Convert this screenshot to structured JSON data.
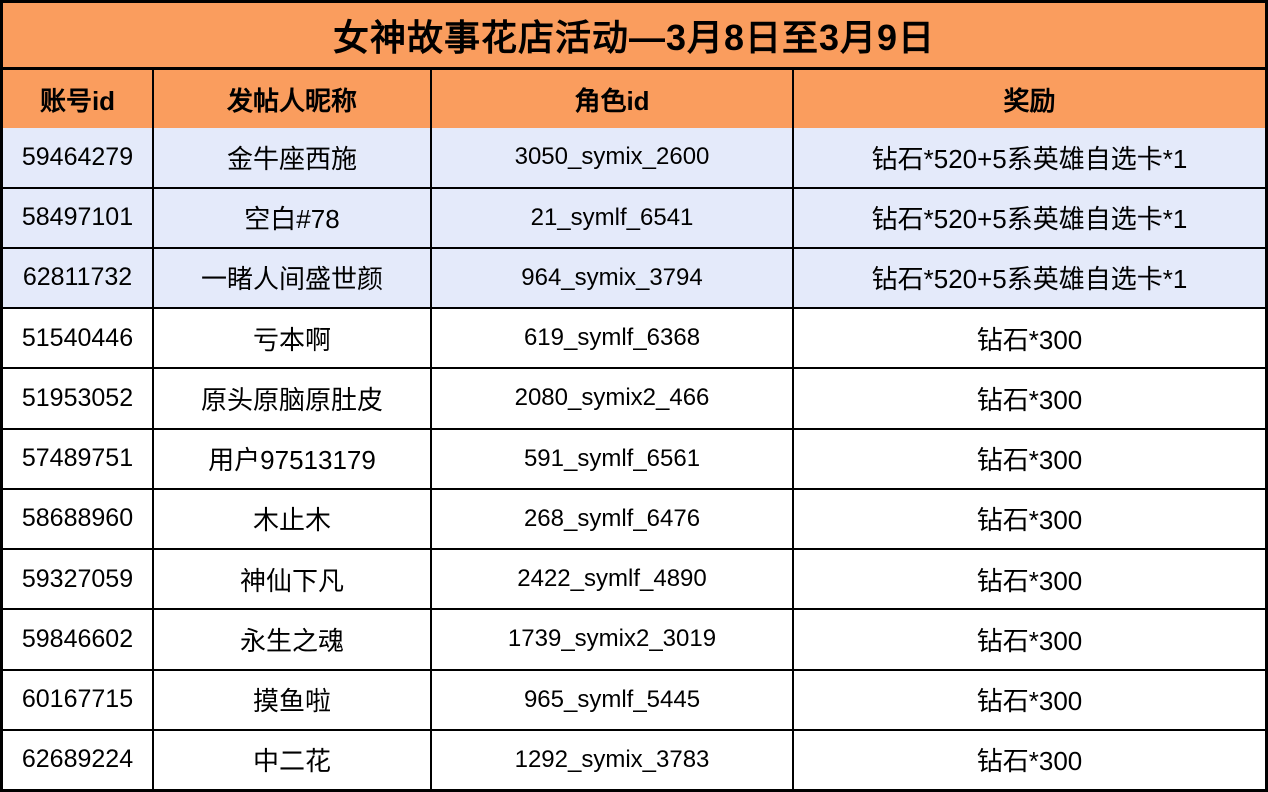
{
  "title": "女神故事花店活动—3月8日至3月9日",
  "columns": {
    "account_id": "账号id",
    "nickname": "发帖人昵称",
    "role_id": "角色id",
    "reward": "奖励"
  },
  "rows": [
    {
      "account_id": "59464279",
      "nickname": "金牛座西施",
      "role_id": "3050_symix_2600",
      "reward": "钻石*520+5系英雄自选卡*1",
      "highlight": true
    },
    {
      "account_id": "58497101",
      "nickname": "空白#78",
      "role_id": "21_symlf_6541",
      "reward": "钻石*520+5系英雄自选卡*1",
      "highlight": true
    },
    {
      "account_id": "62811732",
      "nickname": "一睹人间盛世颜",
      "role_id": "964_symix_3794",
      "reward": "钻石*520+5系英雄自选卡*1",
      "highlight": true
    },
    {
      "account_id": "51540446",
      "nickname": "亏本啊",
      "role_id": "619_symlf_6368",
      "reward": "钻石*300",
      "highlight": false
    },
    {
      "account_id": "51953052",
      "nickname": "原头原脑原肚皮",
      "role_id": "2080_symix2_466",
      "reward": "钻石*300",
      "highlight": false
    },
    {
      "account_id": "57489751",
      "nickname": "用户97513179",
      "role_id": "591_symlf_6561",
      "reward": "钻石*300",
      "highlight": false
    },
    {
      "account_id": "58688960",
      "nickname": "木止木",
      "role_id": "268_symlf_6476",
      "reward": "钻石*300",
      "highlight": false
    },
    {
      "account_id": "59327059",
      "nickname": "神仙下凡",
      "role_id": "2422_symlf_4890",
      "reward": "钻石*300",
      "highlight": false
    },
    {
      "account_id": "59846602",
      "nickname": "永生之魂",
      "role_id": "1739_symix2_3019",
      "reward": "钻石*300",
      "highlight": false
    },
    {
      "account_id": "60167715",
      "nickname": "摸鱼啦",
      "role_id": "965_symlf_5445",
      "reward": "钻石*300",
      "highlight": false
    },
    {
      "account_id": "62689224",
      "nickname": "中二花",
      "role_id": "1292_symix_3783",
      "reward": "钻石*300",
      "highlight": false
    }
  ],
  "colors": {
    "header_orange": "#fa9d5e",
    "highlight_blue": "#e4eafa",
    "border": "#000000",
    "text": "#000000"
  }
}
